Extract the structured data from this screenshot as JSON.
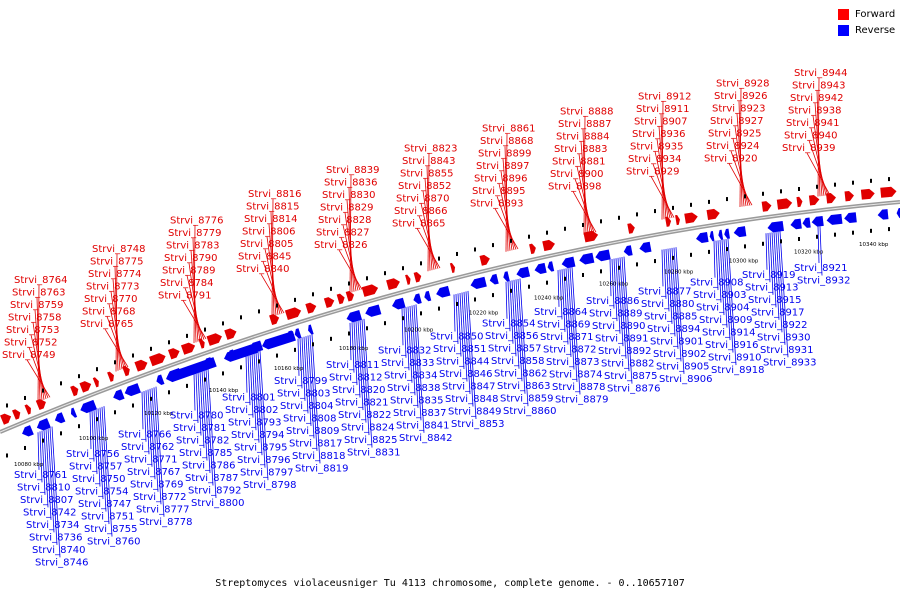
{
  "caption": "Streptomyces violaceusniger Tu 4113 chromosome, complete genome. - 0..10657107",
  "legend": [
    {
      "label": "Forward",
      "color": "#ff0000"
    },
    {
      "label": "Reverse",
      "color": "#0000ff"
    }
  ],
  "colors": {
    "forward": "#e00000",
    "reverse": "#0000ee",
    "backbone": "#9a9a9a"
  },
  "axis_ticks": [
    "10080 kbp",
    "10100 kbp",
    "10120 kbp",
    "10140 kbp",
    "10160 kbp",
    "10180 kbp",
    "10200 kbp",
    "10220 kbp",
    "10240 kbp",
    "10260 kbp",
    "10280 kbp",
    "10300 kbp",
    "10320 kbp",
    "10340 kbp"
  ],
  "forward_genes": [
    "Strvi_8764",
    "Strvi_8763",
    "Strvi_8759",
    "Strvi_8758",
    "Strvi_8753",
    "Strvi_8752",
    "Strvi_8749",
    "Strvi_8748",
    "Strvi_8775",
    "Strvi_8774",
    "Strvi_8773",
    "Strvi_8770",
    "Strvi_8768",
    "Strvi_8765",
    "Strvi_8776",
    "Strvi_8779",
    "Strvi_8783",
    "Strvi_8790",
    "Strvi_8789",
    "Strvi_8784",
    "Strvi_8791",
    "Strvi_8816",
    "Strvi_8815",
    "Strvi_8814",
    "Strvi_8806",
    "Strvi_8805",
    "Strvi_8845",
    "Strvi_8840",
    "Strvi_8839",
    "Strvi_8836",
    "Strvi_8830",
    "Strvi_8829",
    "Strvi_8828",
    "Strvi_8827",
    "Strvi_8826",
    "Strvi_8823",
    "Strvi_8843",
    "Strvi_8855",
    "Strvi_8852",
    "Strvi_8870",
    "Strvi_8866",
    "Strvi_8865",
    "Strvi_8861",
    "Strvi_8868",
    "Strvi_8899",
    "Strvi_8897",
    "Strvi_8896",
    "Strvi_8895",
    "Strvi_8893",
    "Strvi_8888",
    "Strvi_8887",
    "Strvi_8884",
    "Strvi_8883",
    "Strvi_8881",
    "Strvi_8900",
    "Strvi_8898",
    "Strvi_8912",
    "Strvi_8911",
    "Strvi_8907",
    "Strvi_8936",
    "Strvi_8935",
    "Strvi_8934",
    "Strvi_8929",
    "Strvi_8928",
    "Strvi_8926",
    "Strvi_8923",
    "Strvi_8927",
    "Strvi_8925",
    "Strvi_8924",
    "Strvi_8920",
    "Strvi_8944",
    "Strvi_8943",
    "Strvi_8942",
    "Strvi_8938",
    "Strvi_8941",
    "Strvi_8940",
    "Strvi_8939"
  ],
  "reverse_genes": [
    "Strvi_8761",
    "Strvi_8810",
    "Strvi_8807",
    "Strvi_8742",
    "Strvi_8734",
    "Strvi_8736",
    "Strvi_8740",
    "Strvi_8746",
    "Strvi_8756",
    "Strvi_8757",
    "Strvi_8750",
    "Strvi_8754",
    "Strvi_8747",
    "Strvi_8751",
    "Strvi_8755",
    "Strvi_8760",
    "Strvi_8766",
    "Strvi_8762",
    "Strvi_8771",
    "Strvi_8767",
    "Strvi_8769",
    "Strvi_8772",
    "Strvi_8777",
    "Strvi_8778",
    "Strvi_8780",
    "Strvi_8781",
    "Strvi_8782",
    "Strvi_8785",
    "Strvi_8786",
    "Strvi_8787",
    "Strvi_8792",
    "Strvi_8800",
    "Strvi_8801",
    "Strvi_8802",
    "Strvi_8793",
    "Strvi_8794",
    "Strvi_8795",
    "Strvi_8796",
    "Strvi_8797",
    "Strvi_8798",
    "Strvi_8799",
    "Strvi_8803",
    "Strvi_8804",
    "Strvi_8808",
    "Strvi_8809",
    "Strvi_8817",
    "Strvi_8818",
    "Strvi_8819",
    "Strvi_8811",
    "Strvi_8812",
    "Strvi_8820",
    "Strvi_8821",
    "Strvi_8822",
    "Strvi_8824",
    "Strvi_8825",
    "Strvi_8831",
    "Strvi_8832",
    "Strvi_8833",
    "Strvi_8834",
    "Strvi_8838",
    "Strvi_8835",
    "Strvi_8837",
    "Strvi_8841",
    "Strvi_8842",
    "Strvi_8850",
    "Strvi_8851",
    "Strvi_8844",
    "Strvi_8846",
    "Strvi_8847",
    "Strvi_8848",
    "Strvi_8849",
    "Strvi_8853",
    "Strvi_8854",
    "Strvi_8856",
    "Strvi_8857",
    "Strvi_8858",
    "Strvi_8862",
    "Strvi_8863",
    "Strvi_8859",
    "Strvi_8860",
    "Strvi_8864",
    "Strvi_8869",
    "Strvi_8871",
    "Strvi_8872",
    "Strvi_8873",
    "Strvi_8874",
    "Strvi_8878",
    "Strvi_8879",
    "Strvi_8886",
    "Strvi_8889",
    "Strvi_8890",
    "Strvi_8891",
    "Strvi_8892",
    "Strvi_8882",
    "Strvi_8875",
    "Strvi_8876",
    "Strvi_8877",
    "Strvi_8880",
    "Strvi_8885",
    "Strvi_8894",
    "Strvi_8901",
    "Strvi_8902",
    "Strvi_8905",
    "Strvi_8906",
    "Strvi_8908",
    "Strvi_8903",
    "Strvi_8904",
    "Strvi_8909",
    "Strvi_8914",
    "Strvi_8916",
    "Strvi_8910",
    "Strvi_8918",
    "Strvi_8919",
    "Strvi_8913",
    "Strvi_8915",
    "Strvi_8917",
    "Strvi_8922",
    "Strvi_8930",
    "Strvi_8931",
    "Strvi_8933",
    "Strvi_8921",
    "Strvi_8932"
  ]
}
